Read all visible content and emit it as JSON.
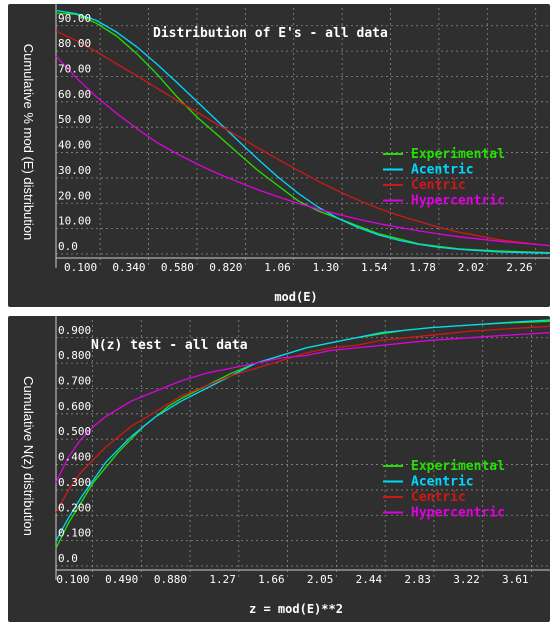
{
  "chart_data": [
    {
      "type": "line",
      "title": "Distribution of E's - all data",
      "xlabel": "mod(E)",
      "ylabel": "Cumulative % mod (E) distribution",
      "xlim": [
        0,
        2.45
      ],
      "ylim": [
        0,
        97
      ],
      "x_ticks": [
        "0.100",
        "0.340",
        "0.580",
        "0.820",
        "1.06",
        "1.30",
        "1.54",
        "1.78",
        "2.02",
        "2.26"
      ],
      "y_ticks": [
        "0.0",
        "10.00",
        "20.00",
        "30.00",
        "40.00",
        "50.00",
        "60.00",
        "70.00",
        "80.00",
        "90.00"
      ],
      "grid": true,
      "legend_position": "right",
      "series": [
        {
          "name": "Experimental",
          "color": "#22e000",
          "x": [
            0,
            0.1,
            0.2,
            0.3,
            0.4,
            0.5,
            0.6,
            0.7,
            0.8,
            0.9,
            1.0,
            1.1,
            1.2,
            1.3,
            1.4,
            1.5,
            1.6,
            1.7,
            1.8,
            1.9,
            2.0,
            2.2,
            2.45
          ],
          "y": [
            95,
            94.5,
            91,
            86,
            79,
            71,
            62,
            54,
            47,
            40,
            33,
            27,
            21,
            17,
            14,
            11,
            8,
            6,
            4,
            3,
            2,
            1.2,
            0.5
          ]
        },
        {
          "name": "Acentric",
          "color": "#00d8ff",
          "x": [
            0,
            0.1,
            0.2,
            0.3,
            0.4,
            0.5,
            0.6,
            0.7,
            0.8,
            0.9,
            1.0,
            1.1,
            1.2,
            1.3,
            1.4,
            1.5,
            1.6,
            1.7,
            1.8,
            1.9,
            2.0,
            2.2,
            2.45
          ],
          "y": [
            96,
            94.8,
            92.1,
            87.5,
            81.7,
            74.9,
            67.6,
            60.1,
            52.5,
            44.9,
            37.5,
            30.4,
            24,
            18.5,
            14,
            10.4,
            7.5,
            5.4,
            3.8,
            2.6,
            1.8,
            0.8,
            0.3
          ]
        },
        {
          "name": "Centric",
          "color": "#d01818",
          "x": [
            0,
            0.1,
            0.2,
            0.3,
            0.4,
            0.5,
            0.6,
            0.7,
            0.8,
            0.9,
            1.0,
            1.1,
            1.2,
            1.3,
            1.4,
            1.5,
            1.6,
            1.7,
            1.8,
            1.9,
            2.0,
            2.2,
            2.45
          ],
          "y": [
            88,
            84.1,
            79.8,
            75,
            70.3,
            65.4,
            60.6,
            55.9,
            51.1,
            46.6,
            41.9,
            37.4,
            33,
            28.7,
            24.8,
            21.2,
            18,
            15.2,
            12.8,
            10.5,
            8.6,
            5.6,
            3.2
          ]
        },
        {
          "name": "Hypercentric",
          "color": "#e000e0",
          "x": [
            0,
            0.1,
            0.2,
            0.3,
            0.4,
            0.5,
            0.6,
            0.7,
            0.8,
            0.9,
            1.0,
            1.1,
            1.2,
            1.3,
            1.4,
            1.5,
            1.6,
            1.7,
            1.8,
            1.9,
            2.0,
            2.2,
            2.45
          ],
          "y": [
            78,
            69.5,
            62,
            55.5,
            49.5,
            44,
            39.5,
            35.5,
            31.8,
            28.5,
            25.4,
            22.6,
            20,
            17.7,
            15.6,
            13.7,
            12,
            10.5,
            9.1,
            7.9,
            6.8,
            5,
            3.3
          ]
        }
      ]
    },
    {
      "type": "line",
      "title": "N(z) test - all data",
      "xlabel": "z = mod(E)**2",
      "ylabel": "Cumulative N(z) distribution",
      "xlim": [
        0,
        3.95
      ],
      "ylim": [
        0,
        0.97
      ],
      "x_ticks": [
        "0.100",
        "0.490",
        "0.880",
        "1.27",
        "1.66",
        "2.05",
        "2.44",
        "2.83",
        "3.22",
        "3.61"
      ],
      "y_ticks": [
        "0.0",
        "0.100",
        "0.200",
        "0.300",
        "0.400",
        "0.500",
        "0.600",
        "0.700",
        "0.800",
        "0.900"
      ],
      "grid": true,
      "legend_position": "right",
      "series": [
        {
          "name": "Experimental",
          "color": "#22e000",
          "x": [
            0,
            0.1,
            0.2,
            0.3,
            0.4,
            0.5,
            0.6,
            0.7,
            0.8,
            0.9,
            1.0,
            1.2,
            1.4,
            1.6,
            1.8,
            2.0,
            2.2,
            2.4,
            2.6,
            2.8,
            3.0,
            3.3,
            3.6,
            3.95
          ],
          "y": [
            0.07,
            0.17,
            0.25,
            0.33,
            0.39,
            0.45,
            0.5,
            0.55,
            0.59,
            0.63,
            0.66,
            0.71,
            0.76,
            0.8,
            0.83,
            0.86,
            0.88,
            0.9,
            0.915,
            0.93,
            0.94,
            0.95,
            0.958,
            0.965
          ]
        },
        {
          "name": "Acentric",
          "color": "#00d8ff",
          "x": [
            0,
            0.1,
            0.2,
            0.3,
            0.4,
            0.5,
            0.6,
            0.7,
            0.8,
            0.9,
            1.0,
            1.2,
            1.4,
            1.6,
            1.8,
            2.0,
            2.2,
            2.4,
            2.6,
            2.8,
            3.0,
            3.3,
            3.6,
            3.95
          ],
          "y": [
            0.1,
            0.19,
            0.27,
            0.34,
            0.41,
            0.46,
            0.51,
            0.55,
            0.59,
            0.62,
            0.65,
            0.7,
            0.75,
            0.8,
            0.83,
            0.86,
            0.88,
            0.9,
            0.92,
            0.93,
            0.94,
            0.95,
            0.96,
            0.97
          ]
        },
        {
          "name": "Centric",
          "color": "#d01818",
          "x": [
            0,
            0.1,
            0.2,
            0.3,
            0.4,
            0.5,
            0.6,
            0.7,
            0.8,
            0.9,
            1.0,
            1.2,
            1.4,
            1.6,
            1.8,
            2.0,
            2.2,
            2.4,
            2.6,
            2.8,
            3.0,
            3.3,
            3.6,
            3.95
          ],
          "y": [
            0.21,
            0.3,
            0.37,
            0.42,
            0.47,
            0.51,
            0.55,
            0.58,
            0.61,
            0.64,
            0.67,
            0.71,
            0.75,
            0.78,
            0.81,
            0.84,
            0.86,
            0.87,
            0.89,
            0.9,
            0.91,
            0.925,
            0.935,
            0.945
          ]
        },
        {
          "name": "Hypercentric",
          "color": "#e000e0",
          "x": [
            0,
            0.1,
            0.2,
            0.3,
            0.4,
            0.5,
            0.6,
            0.7,
            0.8,
            0.9,
            1.0,
            1.2,
            1.4,
            1.6,
            1.8,
            2.0,
            2.2,
            2.4,
            2.6,
            2.8,
            3.0,
            3.3,
            3.6,
            3.95
          ],
          "y": [
            0.33,
            0.43,
            0.5,
            0.55,
            0.59,
            0.62,
            0.65,
            0.67,
            0.69,
            0.71,
            0.73,
            0.76,
            0.78,
            0.8,
            0.82,
            0.83,
            0.85,
            0.86,
            0.87,
            0.88,
            0.89,
            0.9,
            0.91,
            0.92
          ]
        }
      ]
    }
  ]
}
